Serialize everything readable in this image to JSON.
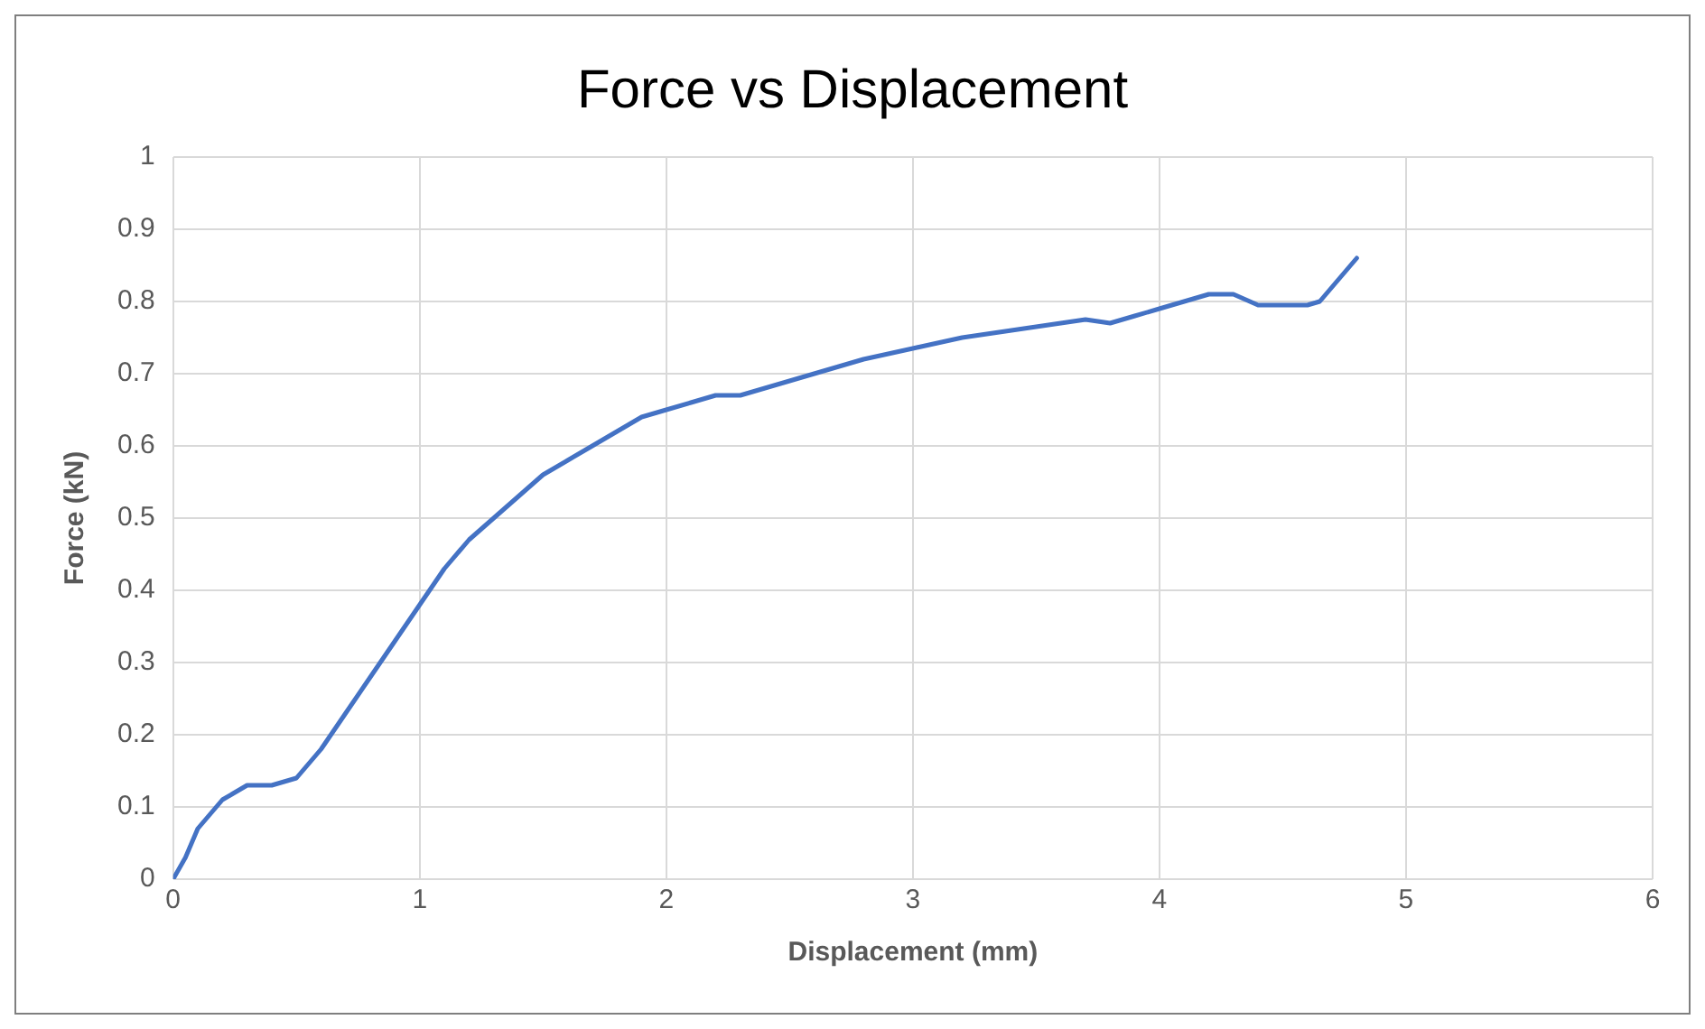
{
  "chart_data": {
    "type": "line",
    "title": "Force vs Displacement",
    "xlabel": "Displacement (mm)",
    "ylabel": "Force (kN)",
    "series": [
      {
        "color": "#4472c4",
        "x": [
          0,
          0.05,
          0.1,
          0.2,
          0.3,
          0.4,
          0.5,
          0.6,
          0.7,
          0.8,
          0.9,
          1.0,
          1.1,
          1.2,
          1.3,
          1.4,
          1.5,
          1.6,
          1.7,
          1.8,
          1.9,
          2.0,
          2.1,
          2.2,
          2.3,
          2.4,
          2.5,
          2.6,
          2.7,
          2.8,
          3.0,
          3.2,
          3.4,
          3.6,
          3.7,
          3.8,
          3.9,
          4.0,
          4.1,
          4.2,
          4.3,
          4.4,
          4.5,
          4.6,
          4.65,
          4.7,
          4.8
        ],
        "values": [
          0,
          0.03,
          0.07,
          0.11,
          0.13,
          0.13,
          0.14,
          0.18,
          0.23,
          0.28,
          0.33,
          0.38,
          0.43,
          0.47,
          0.5,
          0.53,
          0.56,
          0.58,
          0.6,
          0.62,
          0.64,
          0.65,
          0.66,
          0.67,
          0.67,
          0.68,
          0.69,
          0.7,
          0.71,
          0.72,
          0.735,
          0.75,
          0.76,
          0.77,
          0.775,
          0.77,
          0.78,
          0.79,
          0.8,
          0.81,
          0.81,
          0.795,
          0.795,
          0.795,
          0.8,
          0.82,
          0.86
        ]
      }
    ],
    "xlim": [
      0,
      6
    ],
    "xticks": [
      0,
      1,
      2,
      3,
      4,
      5,
      6
    ],
    "ylim": [
      0,
      1
    ],
    "yticks": [
      0,
      0.1,
      0.2,
      0.3,
      0.4,
      0.5,
      0.6,
      0.7,
      0.8,
      0.9,
      1
    ],
    "grid": true,
    "legend": false,
    "marker": "none",
    "line_style": "solid"
  }
}
